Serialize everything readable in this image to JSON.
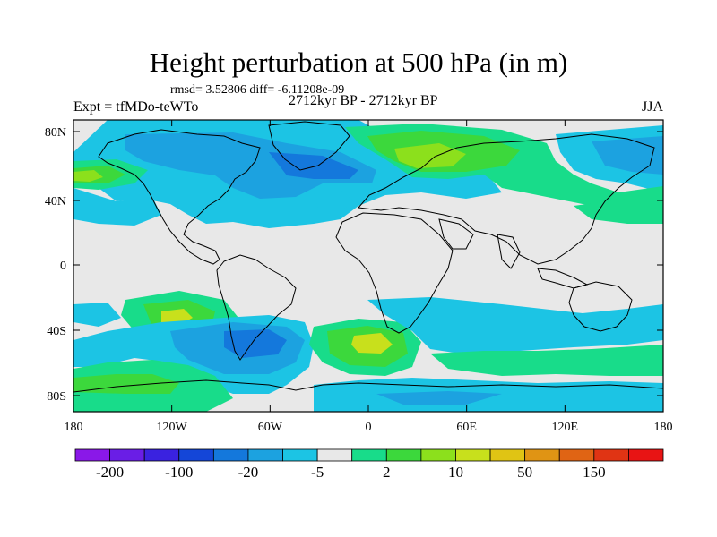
{
  "title": "Height perturbation at 500 hPa (in m)",
  "stats": "rmsd= 3.52806 diff= -6.11208e-09",
  "experiment": "Expt = tfMDo-teWTo",
  "period": "2712kyr BP - 2712kyr BP",
  "season": "JJA",
  "lat_labels": [
    "80N",
    "40N",
    "0",
    "40S",
    "80S"
  ],
  "lon_labels": [
    "180",
    "120W",
    "60W",
    "0",
    "60E",
    "120E",
    "180"
  ],
  "colorbar": {
    "labels": [
      "-200",
      "-100",
      "-20",
      "-5",
      "2",
      "10",
      "50",
      "150"
    ],
    "colors": [
      "#8a18e8",
      "#6a1ee6",
      "#3a22e0",
      "#1446d8",
      "#1478dc",
      "#1ca2e0",
      "#1cc4e4",
      "#e8e8e8",
      "#18dc8a",
      "#3cd83c",
      "#8ce01c",
      "#c8e01c",
      "#e0c414",
      "#e09414",
      "#e06414",
      "#e03414",
      "#e81414"
    ]
  },
  "field_colors": {
    "neutral": "#e8e8e8",
    "neg_weak": "#1cc4e4",
    "neg_mid": "#1ca2e0",
    "neg_strong": "#1478dc",
    "pos_weak": "#18dc8a",
    "pos_mid": "#3cd83c",
    "pos_strong": "#8ce01c",
    "pos_peak": "#c8e01c"
  }
}
